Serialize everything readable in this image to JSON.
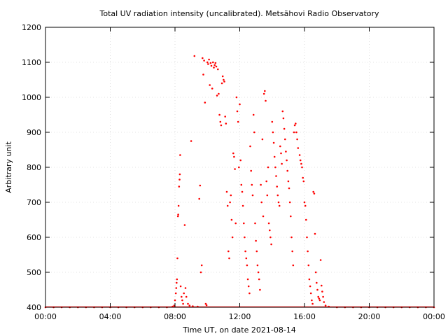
{
  "chart_data": {
    "type": "scatter",
    "title": "Total UV radiation intensity (uncalibrated). Metsähovi Radio Observatory",
    "xlabel": "Time UT, on date 2021-08-14",
    "ylabel": "Arbitrary unit",
    "x_unit": "hours UT",
    "xlim": [
      0,
      24
    ],
    "ylim": [
      400,
      1200
    ],
    "x_ticks": [
      0,
      4,
      8,
      12,
      16,
      20,
      24
    ],
    "x_tick_labels": [
      "00:00",
      "04:00",
      "08:00",
      "12:00",
      "16:00",
      "20:00",
      "00:00"
    ],
    "y_ticks": [
      400,
      500,
      600,
      700,
      800,
      900,
      1000,
      1100,
      1200
    ],
    "y_tick_labels": [
      "400",
      "500",
      "600",
      "700",
      "800",
      "900",
      "1000",
      "1100",
      "1200"
    ],
    "grid": true,
    "legend": "none",
    "marker_color": "#ff0000",
    "series": [
      {
        "points": [
          [
            0.0,
            400
          ],
          [
            0.5,
            400
          ],
          [
            1.0,
            400
          ],
          [
            1.5,
            400
          ],
          [
            2.0,
            400
          ],
          [
            2.5,
            400
          ],
          [
            3.0,
            400
          ],
          [
            3.5,
            400
          ],
          [
            4.0,
            400
          ],
          [
            4.5,
            400
          ],
          [
            5.0,
            400
          ],
          [
            5.5,
            400
          ],
          [
            6.0,
            400
          ],
          [
            6.5,
            400
          ],
          [
            7.0,
            400
          ],
          [
            7.5,
            400
          ],
          [
            7.85,
            402
          ],
          [
            7.95,
            405
          ],
          [
            8.0,
            420
          ],
          [
            8.05,
            440
          ],
          [
            8.08,
            455
          ],
          [
            8.1,
            470
          ],
          [
            8.12,
            480
          ],
          [
            8.15,
            540
          ],
          [
            8.18,
            660
          ],
          [
            8.2,
            665
          ],
          [
            8.22,
            690
          ],
          [
            8.25,
            745
          ],
          [
            8.28,
            765
          ],
          [
            8.3,
            780
          ],
          [
            8.32,
            835
          ],
          [
            8.35,
            460
          ],
          [
            8.4,
            430
          ],
          [
            8.45,
            420
          ],
          [
            8.5,
            410
          ],
          [
            8.55,
            440
          ],
          [
            8.6,
            635
          ],
          [
            8.65,
            455
          ],
          [
            8.7,
            430
          ],
          [
            8.8,
            410
          ],
          [
            8.9,
            405
          ],
          [
            9.0,
            875
          ],
          [
            9.1,
            403
          ],
          [
            9.2,
            1118
          ],
          [
            9.4,
            402
          ],
          [
            9.5,
            710
          ],
          [
            9.55,
            748
          ],
          [
            9.6,
            500
          ],
          [
            9.65,
            520
          ],
          [
            9.7,
            1112
          ],
          [
            9.75,
            1065
          ],
          [
            9.8,
            1105
          ],
          [
            9.85,
            985
          ],
          [
            9.9,
            410
          ],
          [
            9.95,
            406
          ],
          [
            10.0,
            1100
          ],
          [
            10.05,
            1095
          ],
          [
            10.1,
            1108
          ],
          [
            10.15,
            1035
          ],
          [
            10.2,
            1098
          ],
          [
            10.25,
            1090
          ],
          [
            10.3,
            1025
          ],
          [
            10.35,
            1100
          ],
          [
            10.4,
            1085
          ],
          [
            10.45,
            1092
          ],
          [
            10.5,
            1098
          ],
          [
            10.55,
            1088
          ],
          [
            10.6,
            1005
          ],
          [
            10.65,
            1080
          ],
          [
            10.7,
            1010
          ],
          [
            10.75,
            950
          ],
          [
            10.8,
            930
          ],
          [
            10.85,
            920
          ],
          [
            10.9,
            1040
          ],
          [
            10.95,
            1060
          ],
          [
            11.0,
            1050
          ],
          [
            11.05,
            1045
          ],
          [
            11.1,
            945
          ],
          [
            11.15,
            925
          ],
          [
            11.2,
            730
          ],
          [
            11.25,
            690
          ],
          [
            11.3,
            560
          ],
          [
            11.35,
            540
          ],
          [
            11.4,
            700
          ],
          [
            11.45,
            720
          ],
          [
            11.5,
            650
          ],
          [
            11.55,
            600
          ],
          [
            11.6,
            840
          ],
          [
            11.65,
            830
          ],
          [
            11.7,
            795
          ],
          [
            11.75,
            640
          ],
          [
            11.8,
            1000
          ],
          [
            11.85,
            960
          ],
          [
            11.9,
            930
          ],
          [
            11.95,
            800
          ],
          [
            12.0,
            980
          ],
          [
            12.05,
            820
          ],
          [
            12.1,
            750
          ],
          [
            12.15,
            730
          ],
          [
            12.2,
            690
          ],
          [
            12.25,
            640
          ],
          [
            12.3,
            600
          ],
          [
            12.35,
            560
          ],
          [
            12.4,
            540
          ],
          [
            12.45,
            520
          ],
          [
            12.5,
            480
          ],
          [
            12.55,
            460
          ],
          [
            12.6,
            440
          ],
          [
            12.65,
            860
          ],
          [
            12.7,
            790
          ],
          [
            12.75,
            750
          ],
          [
            12.8,
            720
          ],
          [
            12.85,
            950
          ],
          [
            12.9,
            900
          ],
          [
            12.95,
            640
          ],
          [
            13.0,
            590
          ],
          [
            13.05,
            560
          ],
          [
            13.1,
            520
          ],
          [
            13.15,
            500
          ],
          [
            13.2,
            480
          ],
          [
            13.25,
            450
          ],
          [
            13.3,
            750
          ],
          [
            13.35,
            700
          ],
          [
            13.4,
            880
          ],
          [
            13.45,
            660
          ],
          [
            13.5,
            1010
          ],
          [
            13.55,
            1018
          ],
          [
            13.6,
            990
          ],
          [
            13.65,
            760
          ],
          [
            13.7,
            720
          ],
          [
            13.75,
            800
          ],
          [
            13.8,
            640
          ],
          [
            13.85,
            620
          ],
          [
            13.9,
            600
          ],
          [
            13.95,
            580
          ],
          [
            14.0,
            930
          ],
          [
            14.05,
            900
          ],
          [
            14.1,
            870
          ],
          [
            14.15,
            830
          ],
          [
            14.2,
            800
          ],
          [
            14.25,
            775
          ],
          [
            14.3,
            745
          ],
          [
            14.35,
            720
          ],
          [
            14.4,
            700
          ],
          [
            14.45,
            690
          ],
          [
            14.5,
            860
          ],
          [
            14.55,
            840
          ],
          [
            14.6,
            810
          ],
          [
            14.65,
            960
          ],
          [
            14.7,
            940
          ],
          [
            14.75,
            910
          ],
          [
            14.8,
            880
          ],
          [
            14.85,
            845
          ],
          [
            14.9,
            820
          ],
          [
            14.95,
            790
          ],
          [
            15.0,
            760
          ],
          [
            15.05,
            740
          ],
          [
            15.1,
            700
          ],
          [
            15.15,
            660
          ],
          [
            15.2,
            600
          ],
          [
            15.25,
            560
          ],
          [
            15.3,
            520
          ],
          [
            15.35,
            900
          ],
          [
            15.4,
            920
          ],
          [
            15.45,
            925
          ],
          [
            15.5,
            900
          ],
          [
            15.55,
            880
          ],
          [
            15.6,
            855
          ],
          [
            15.7,
            835
          ],
          [
            15.75,
            820
          ],
          [
            15.8,
            810
          ],
          [
            15.85,
            800
          ],
          [
            15.9,
            770
          ],
          [
            15.95,
            760
          ],
          [
            16.0,
            700
          ],
          [
            16.05,
            690
          ],
          [
            16.1,
            650
          ],
          [
            16.15,
            600
          ],
          [
            16.2,
            560
          ],
          [
            16.25,
            520
          ],
          [
            16.3,
            480
          ],
          [
            16.35,
            460
          ],
          [
            16.4,
            440
          ],
          [
            16.45,
            420
          ],
          [
            16.5,
            410
          ],
          [
            16.55,
            730
          ],
          [
            16.6,
            725
          ],
          [
            16.65,
            610
          ],
          [
            16.7,
            500
          ],
          [
            16.75,
            470
          ],
          [
            16.8,
            450
          ],
          [
            16.85,
            430
          ],
          [
            16.9,
            425
          ],
          [
            16.95,
            420
          ],
          [
            17.0,
            535
          ],
          [
            17.05,
            462
          ],
          [
            17.1,
            445
          ],
          [
            17.15,
            430
          ],
          [
            17.2,
            415
          ],
          [
            17.3,
            405
          ],
          [
            17.5,
            402
          ],
          [
            18.0,
            400
          ],
          [
            18.5,
            400
          ],
          [
            19.0,
            400
          ],
          [
            19.5,
            400
          ],
          [
            20.0,
            400
          ],
          [
            20.5,
            400
          ],
          [
            21.0,
            400
          ],
          [
            21.5,
            400
          ],
          [
            22.0,
            400
          ],
          [
            22.5,
            400
          ],
          [
            23.0,
            400
          ],
          [
            23.5,
            400
          ],
          [
            24.0,
            400
          ]
        ]
      }
    ]
  }
}
